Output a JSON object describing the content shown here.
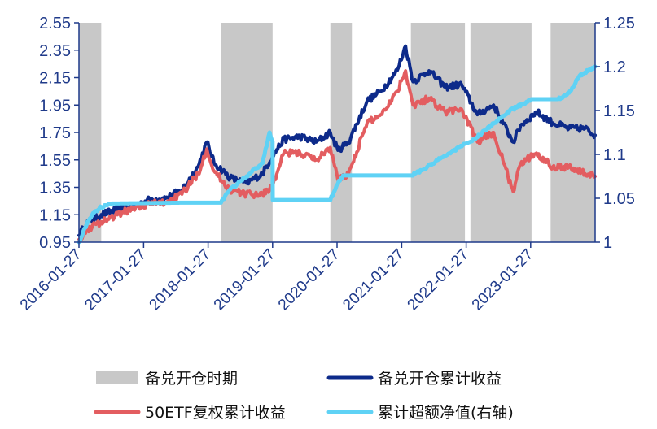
{
  "chart_data": {
    "type": "line",
    "x_labels": [
      "2016-01-27",
      "2017-01-27",
      "2018-01-27",
      "2019-01-27",
      "2020-01-27",
      "2021-01-27",
      "2022-01-27",
      "2023-01-27"
    ],
    "x_range": [
      "2016-01-27",
      "2024-01-27"
    ],
    "y_left": {
      "ylim": [
        0.95,
        2.55
      ],
      "ticks": [
        "0.95",
        "1.15",
        "1.35",
        "1.55",
        "1.75",
        "1.95",
        "2.15",
        "2.35",
        "2.55"
      ]
    },
    "y_right": {
      "ylim": [
        1.0,
        1.25
      ],
      "ticks": [
        "1",
        "1.05",
        "1.1",
        "1.15",
        "1.2",
        "1.25"
      ]
    },
    "shaded_periods": [
      [
        "2016-01-27",
        "2016-06-01"
      ],
      [
        "2018-04-10",
        "2019-01-27"
      ],
      [
        "2019-12-20",
        "2020-04-20"
      ],
      [
        "2021-03-20",
        "2022-01-20"
      ],
      [
        "2022-02-20",
        "2023-02-01"
      ],
      [
        "2023-05-20",
        "2024-01-27"
      ]
    ],
    "series": [
      {
        "name": "备兑开仓累计收益",
        "axis": "left",
        "color": "#0d2a8a",
        "points": [
          [
            "2016-01-27",
            1.0
          ],
          [
            "2016-03-10",
            1.09
          ],
          [
            "2016-06-01",
            1.15
          ],
          [
            "2016-09-01",
            1.19
          ],
          [
            "2016-12-01",
            1.21
          ],
          [
            "2017-03-01",
            1.26
          ],
          [
            "2017-06-01",
            1.27
          ],
          [
            "2017-09-01",
            1.33
          ],
          [
            "2017-12-01",
            1.5
          ],
          [
            "2018-01-20",
            1.68
          ],
          [
            "2018-03-01",
            1.53
          ],
          [
            "2018-06-01",
            1.42
          ],
          [
            "2018-09-01",
            1.38
          ],
          [
            "2018-12-01",
            1.45
          ],
          [
            "2019-01-27",
            1.58
          ],
          [
            "2019-04-01",
            1.7
          ],
          [
            "2019-07-01",
            1.72
          ],
          [
            "2019-10-01",
            1.68
          ],
          [
            "2019-12-20",
            1.75
          ],
          [
            "2020-02-01",
            1.62
          ],
          [
            "2020-04-01",
            1.68
          ],
          [
            "2020-07-15",
            1.98
          ],
          [
            "2020-10-01",
            2.05
          ],
          [
            "2021-01-01",
            2.2
          ],
          [
            "2021-02-18",
            2.38
          ],
          [
            "2021-04-01",
            2.12
          ],
          [
            "2021-07-01",
            2.2
          ],
          [
            "2021-10-01",
            2.08
          ],
          [
            "2022-01-01",
            2.1
          ],
          [
            "2022-04-01",
            1.88
          ],
          [
            "2022-07-01",
            1.95
          ],
          [
            "2022-10-20",
            1.68
          ],
          [
            "2022-12-01",
            1.8
          ],
          [
            "2023-03-01",
            1.9
          ],
          [
            "2023-06-01",
            1.82
          ],
          [
            "2023-09-01",
            1.78
          ],
          [
            "2023-12-01",
            1.78
          ],
          [
            "2024-01-27",
            1.73
          ]
        ]
      },
      {
        "name": "50ETF复权累计收益",
        "axis": "left",
        "color": "#e35d60",
        "points": [
          [
            "2016-01-27",
            0.97
          ],
          [
            "2016-03-10",
            1.04
          ],
          [
            "2016-06-01",
            1.1
          ],
          [
            "2016-09-01",
            1.15
          ],
          [
            "2016-12-01",
            1.2
          ],
          [
            "2017-03-01",
            1.23
          ],
          [
            "2017-06-01",
            1.24
          ],
          [
            "2017-09-01",
            1.3
          ],
          [
            "2017-12-01",
            1.45
          ],
          [
            "2018-01-20",
            1.63
          ],
          [
            "2018-03-01",
            1.47
          ],
          [
            "2018-06-01",
            1.33
          ],
          [
            "2018-09-01",
            1.3
          ],
          [
            "2018-12-01",
            1.3
          ],
          [
            "2019-01-27",
            1.36
          ],
          [
            "2019-04-01",
            1.6
          ],
          [
            "2019-07-01",
            1.6
          ],
          [
            "2019-10-01",
            1.55
          ],
          [
            "2019-12-20",
            1.64
          ],
          [
            "2020-02-01",
            1.4
          ],
          [
            "2020-04-01",
            1.45
          ],
          [
            "2020-07-15",
            1.82
          ],
          [
            "2020-10-01",
            1.88
          ],
          [
            "2021-01-01",
            2.05
          ],
          [
            "2021-02-18",
            2.2
          ],
          [
            "2021-04-01",
            1.95
          ],
          [
            "2021-07-01",
            2.0
          ],
          [
            "2021-10-01",
            1.9
          ],
          [
            "2022-01-01",
            1.92
          ],
          [
            "2022-04-01",
            1.68
          ],
          [
            "2022-07-01",
            1.75
          ],
          [
            "2022-10-20",
            1.32
          ],
          [
            "2022-12-01",
            1.52
          ],
          [
            "2023-03-01",
            1.6
          ],
          [
            "2023-06-01",
            1.5
          ],
          [
            "2023-09-01",
            1.5
          ],
          [
            "2023-12-01",
            1.45
          ],
          [
            "2024-01-27",
            1.43
          ]
        ]
      },
      {
        "name": "累计超额净值(右轴)",
        "axis": "right",
        "color": "#5fd2f5",
        "points": [
          [
            "2016-01-27",
            1.0
          ],
          [
            "2016-03-10",
            1.02
          ],
          [
            "2016-04-15",
            1.033
          ],
          [
            "2016-06-01",
            1.04
          ],
          [
            "2016-07-15",
            1.044
          ],
          [
            "2017-09-01",
            1.045
          ],
          [
            "2018-04-10",
            1.045
          ],
          [
            "2018-06-01",
            1.06
          ],
          [
            "2018-09-01",
            1.075
          ],
          [
            "2018-12-01",
            1.09
          ],
          [
            "2019-01-10",
            1.125
          ],
          [
            "2019-01-27",
            1.115
          ],
          [
            "2019-01-28",
            1.048
          ],
          [
            "2019-12-20",
            1.048
          ],
          [
            "2020-01-25",
            1.065
          ],
          [
            "2020-03-01",
            1.076
          ],
          [
            "2021-03-20",
            1.076
          ],
          [
            "2021-06-01",
            1.083
          ],
          [
            "2021-09-01",
            1.095
          ],
          [
            "2022-01-20",
            1.112
          ],
          [
            "2022-03-01",
            1.115
          ],
          [
            "2022-07-01",
            1.135
          ],
          [
            "2022-10-01",
            1.15
          ],
          [
            "2023-01-10",
            1.16
          ],
          [
            "2023-01-30",
            1.163
          ],
          [
            "2023-07-01",
            1.163
          ],
          [
            "2023-09-01",
            1.17
          ],
          [
            "2023-11-01",
            1.19
          ],
          [
            "2024-01-27",
            1.2
          ]
        ]
      }
    ],
    "legend": [
      {
        "name": "备兑开仓时期",
        "kind": "box",
        "color": "#c8c8c8"
      },
      {
        "name": "备兑开仓累计收益",
        "kind": "line",
        "color": "#0d2a8a"
      },
      {
        "name": "50ETF复权累计收益",
        "kind": "line",
        "color": "#e35d60"
      },
      {
        "name": "累计超额净值(右轴)",
        "kind": "line",
        "color": "#5fd2f5"
      }
    ],
    "legend_placement": "bottom",
    "grid": false,
    "axis_color": "#1f3a8a"
  }
}
